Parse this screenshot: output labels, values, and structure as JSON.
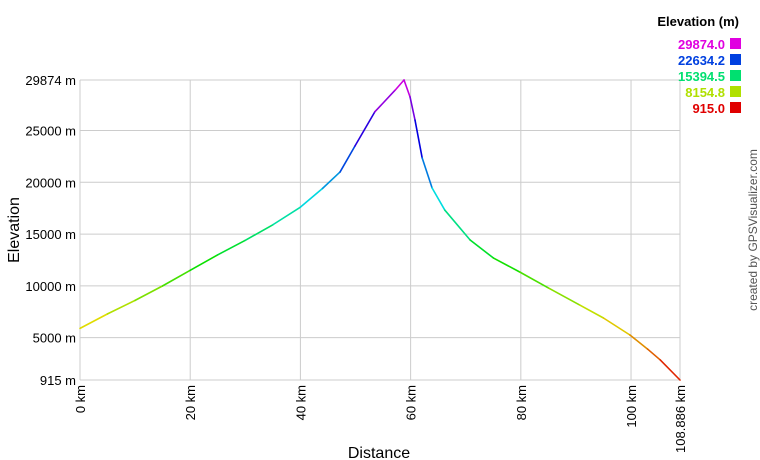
{
  "chart_data": {
    "type": "line",
    "xlabel": "Distance",
    "ylabel": "Elevation",
    "xlim": [
      0,
      108.886
    ],
    "ylim": [
      915,
      29874
    ],
    "grid": true,
    "x_ticks": [
      "0 km",
      "20 km",
      "40 km",
      "60 km",
      "80 km",
      "100 km",
      "108.886 km"
    ],
    "x_tick_values": [
      0,
      20,
      40,
      60,
      80,
      100,
      108.886
    ],
    "y_ticks": [
      "915 m",
      "5000 m",
      "10000 m",
      "15000 m",
      "20000 m",
      "25000 m",
      "29874 m"
    ],
    "y_tick_values": [
      915,
      5000,
      10000,
      15000,
      20000,
      25000,
      29874
    ],
    "legend": {
      "title": "Elevation (m)",
      "placement": "top-right",
      "entries": [
        {
          "label": "29874.0",
          "color": "#e000e0"
        },
        {
          "label": "22634.2",
          "color": "#0040e0"
        },
        {
          "label": "15394.5",
          "color": "#00e070"
        },
        {
          "label": "8154.8",
          "color": "#b0e000"
        },
        {
          "label": "915.0",
          "color": "#e00000"
        }
      ]
    },
    "series": [
      {
        "x": [
          0,
          5,
          10,
          15,
          20,
          25,
          30,
          35,
          40,
          44,
          47.2,
          49.9,
          53.5,
          57.2,
          58.8,
          59.9,
          60.8,
          62.1,
          63.9,
          66.2,
          70.8,
          75,
          79.8,
          85,
          90.7,
          95,
          99.8,
          103,
          105.3,
          108.886
        ],
        "y": [
          5900,
          7300,
          8600,
          10000,
          11500,
          13000,
          14400,
          15900,
          17600,
          19400,
          21000,
          23500,
          26800,
          28900,
          29874,
          28230,
          26000,
          22340,
          19450,
          17320,
          14430,
          12700,
          11340,
          9800,
          8150,
          6900,
          5260,
          3900,
          2850,
          915
        ]
      }
    ]
  },
  "credit": "created by GPSVisualizer.com"
}
